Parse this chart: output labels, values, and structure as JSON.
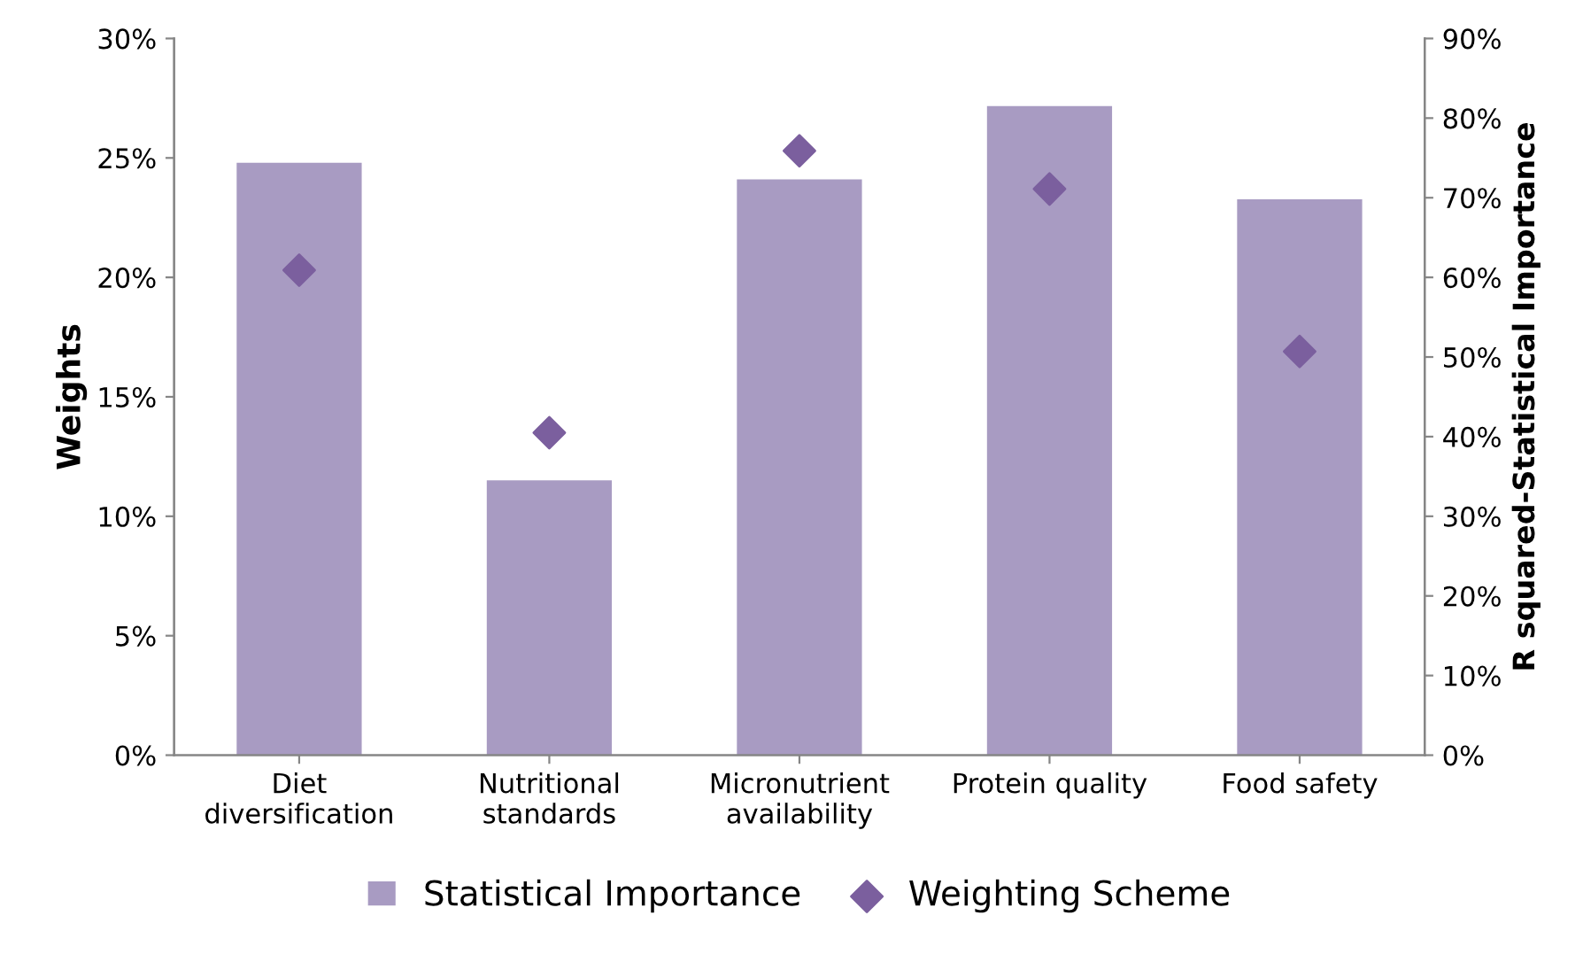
{
  "chart_data": {
    "type": "bar",
    "categories": [
      "Diet\ndiversification",
      "Nutritional\nstandards",
      "Micronutrient\navailability",
      "Protein quality",
      "Food safety"
    ],
    "ylabel": "Weights",
    "y2label": "R squared-Statistical Importance",
    "ylim": [
      0,
      0.3
    ],
    "yticks": [
      {
        "value": 0,
        "label": "0%"
      },
      {
        "value": 0.05,
        "label": "5%"
      },
      {
        "value": 0.1,
        "label": "10%"
      },
      {
        "value": 0.15,
        "label": "15%"
      },
      {
        "value": 0.2,
        "label": "20%"
      },
      {
        "value": 0.25,
        "label": "25%"
      },
      {
        "value": 0.3,
        "label": "30%"
      }
    ],
    "y2lim": [
      0,
      0.9
    ],
    "y2ticks": [
      {
        "value": 0,
        "label": "0%"
      },
      {
        "value": 0.1,
        "label": "10%"
      },
      {
        "value": 0.2,
        "label": "20%"
      },
      {
        "value": 0.3,
        "label": "30%"
      },
      {
        "value": 0.4,
        "label": "40%"
      },
      {
        "value": 0.5,
        "label": "50%"
      },
      {
        "value": 0.6,
        "label": "60%"
      },
      {
        "value": 0.7,
        "label": "70%"
      },
      {
        "value": 0.8,
        "label": "80%"
      },
      {
        "value": 0.9,
        "label": "90%"
      }
    ],
    "series": [
      {
        "name": "Statistical Importance",
        "axis": "y2",
        "color": "#a89bc2",
        "values": [
          0.744,
          0.345,
          0.723,
          0.815,
          0.698
        ]
      },
      {
        "name": "Weighting Scheme",
        "type": "scatter",
        "axis": "y",
        "marker": "diamond",
        "color": "#7b5f9e",
        "values": [
          0.203,
          0.135,
          0.253,
          0.237,
          0.169
        ]
      }
    ],
    "legend": "bottom",
    "grid": false
  }
}
